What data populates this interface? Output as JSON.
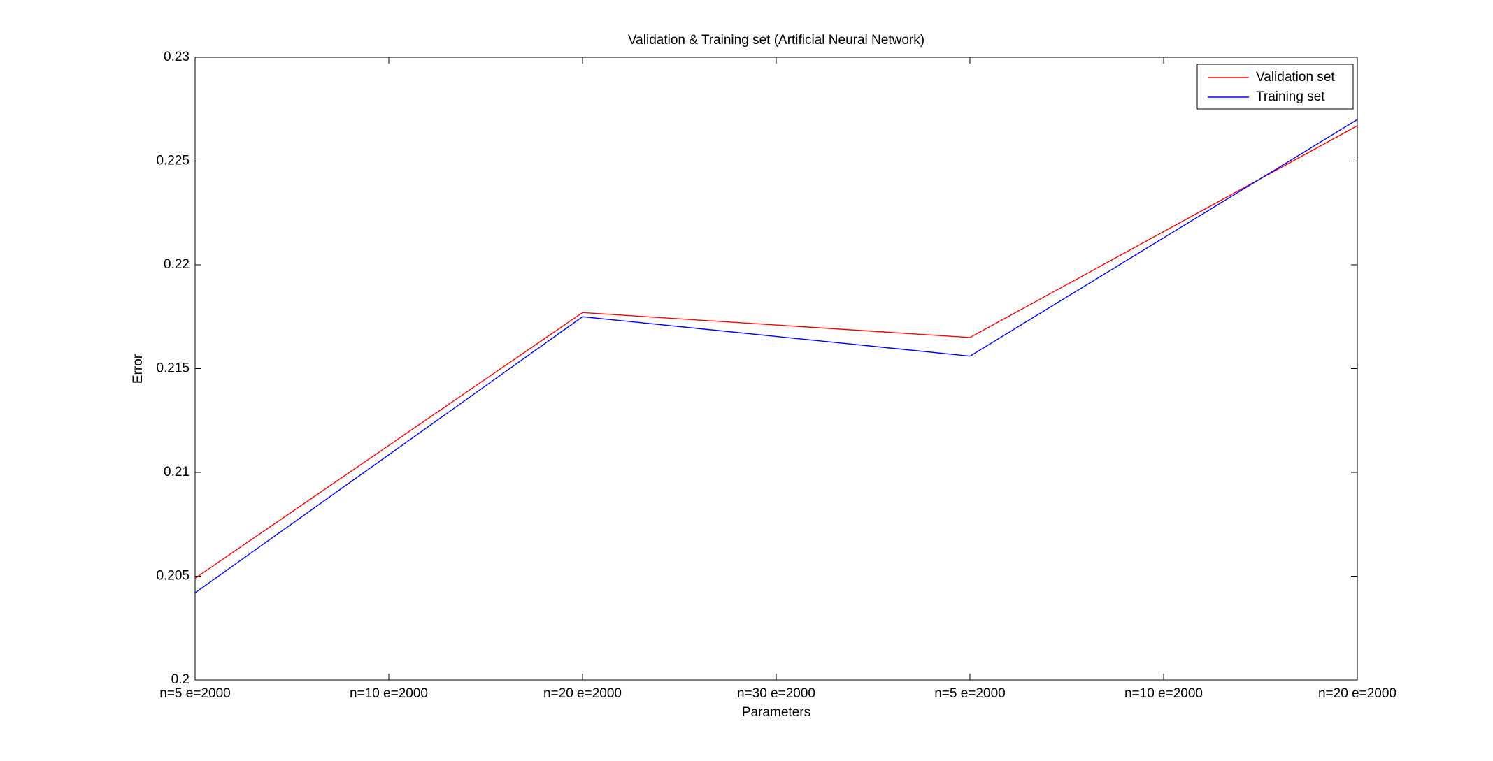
{
  "chart_data": {
    "type": "line",
    "title": "Validation & Training set (Artificial Neural Network)",
    "x_label": "Parameters",
    "y_label": "Error",
    "x": [
      1,
      2,
      3,
      4
    ],
    "xlim": [
      1,
      4
    ],
    "xticks": [
      {
        "value": 1,
        "label": "n=5 e=2000"
      },
      {
        "value": 1.5,
        "label": "n=10 e=2000"
      },
      {
        "value": 2,
        "label": "n=20 e=2000"
      },
      {
        "value": 2.5,
        "label": "n=30 e=2000"
      },
      {
        "value": 3,
        "label": "n=5 e=2000"
      },
      {
        "value": 3.5,
        "label": "n=10 e=2000"
      },
      {
        "value": 4,
        "label": "n=20 e=2000"
      }
    ],
    "ylim": [
      0.2,
      0.23
    ],
    "yticks": [
      0.2,
      0.205,
      0.21,
      0.215,
      0.22,
      0.225,
      0.23
    ],
    "grid": false,
    "legend": "top-right",
    "series": [
      {
        "name": "Validation set",
        "color": "#ff0000",
        "values": [
          0.2049,
          0.2177,
          0.2165,
          0.2267
        ]
      },
      {
        "name": "Training set",
        "color": "#0000ff",
        "values": [
          0.2042,
          0.2175,
          0.2156,
          0.227
        ]
      }
    ]
  }
}
